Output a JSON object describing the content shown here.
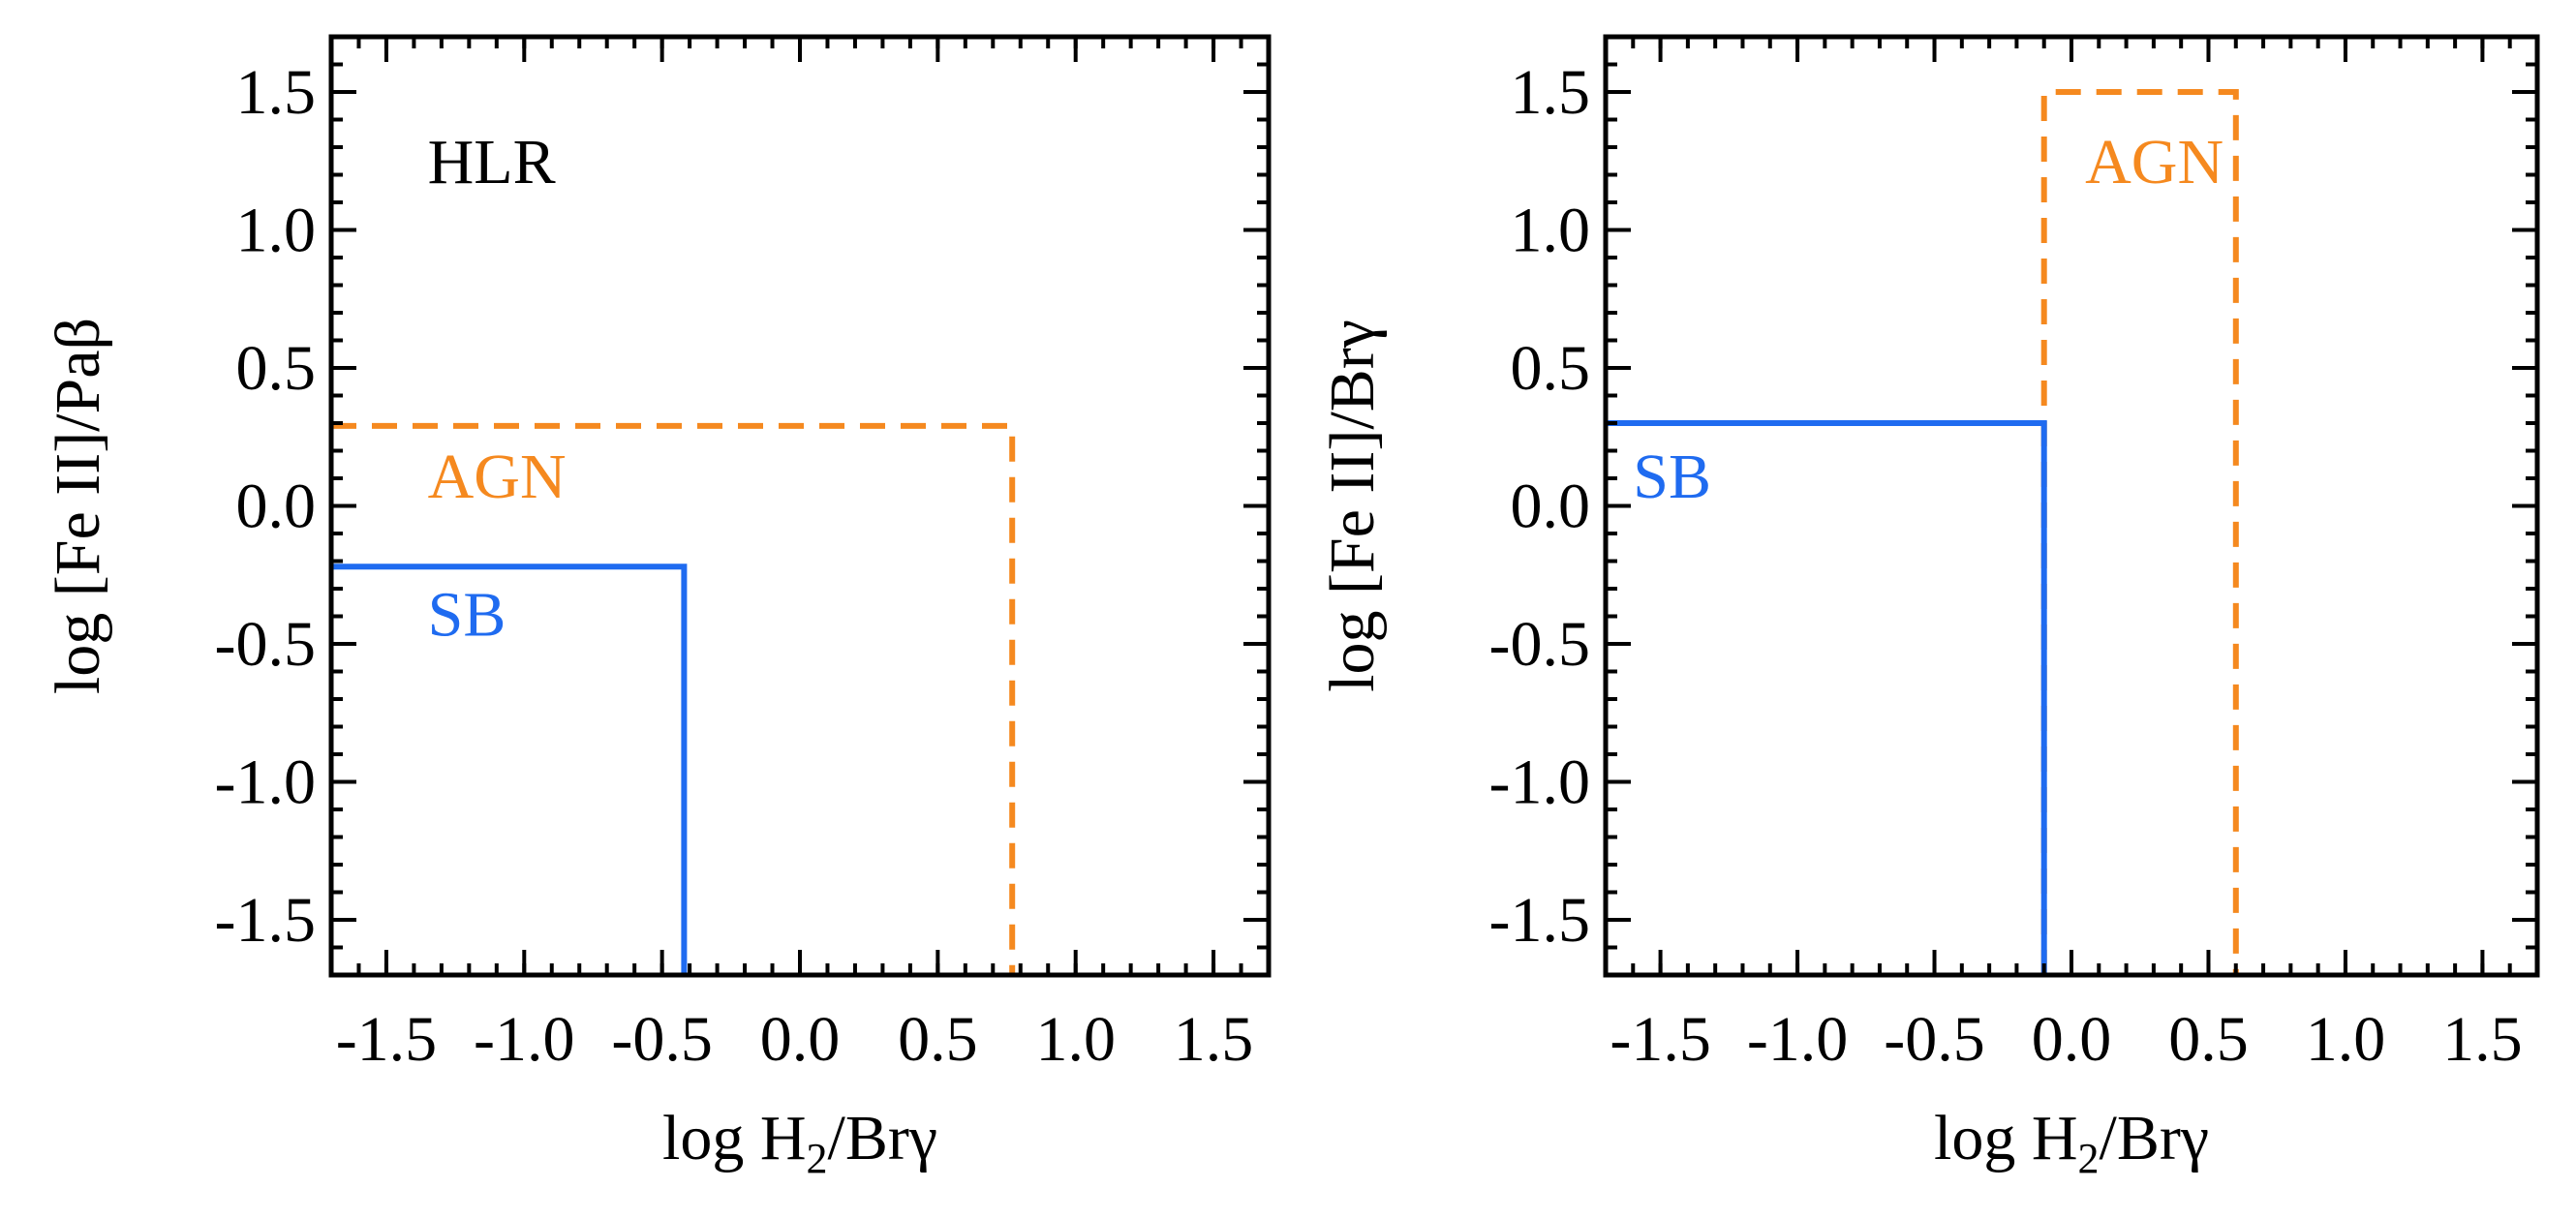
{
  "chart_data": [
    {
      "type": "line",
      "xlabel_main": "log H",
      "xlabel_sub": "2",
      "xlabel_rest": "/Brγ",
      "ylabel": "log [Fe II]/Paβ",
      "xlim": [
        -1.7,
        1.7
      ],
      "ylim": [
        -1.7,
        1.7
      ],
      "xticks": [
        -1.5,
        -1.0,
        -0.5,
        0.0,
        0.5,
        1.0,
        1.5
      ],
      "xtick_labels": [
        "-1.5",
        "-1.0",
        "-0.5",
        "0.0",
        "0.5",
        "1.0",
        "1.5"
      ],
      "yticks": [
        -1.5,
        -1.0,
        -0.5,
        0.0,
        0.5,
        1.0,
        1.5
      ],
      "ytick_labels": [
        "-1.5",
        "-1.0",
        "-0.5",
        "0.0",
        "0.5",
        "1.0",
        "1.5"
      ],
      "annotations": [
        {
          "text": "HLR",
          "x": -1.35,
          "y": 1.17,
          "color": "#000000"
        },
        {
          "text": "AGN",
          "x": -1.35,
          "y": 0.03,
          "color": "#f5891f"
        },
        {
          "text": "SB",
          "x": -1.35,
          "y": -0.47,
          "color": "#1f6bf0"
        }
      ],
      "series": [
        {
          "name": "AGN",
          "color": "#f5891f",
          "style": "dashed",
          "x": [
            -1.7,
            0.77,
            0.77
          ],
          "y": [
            0.29,
            0.29,
            -1.7
          ]
        },
        {
          "name": "SB",
          "color": "#1f6bf0",
          "style": "solid",
          "x": [
            -1.7,
            -0.42,
            -0.42
          ],
          "y": [
            -0.22,
            -0.22,
            -1.7
          ]
        }
      ]
    },
    {
      "type": "line",
      "xlabel_main": "log H",
      "xlabel_sub": "2",
      "xlabel_rest": "/Brγ",
      "ylabel": "log [Fe II]/Brγ",
      "xlim": [
        -1.7,
        1.7
      ],
      "ylim": [
        -1.7,
        1.7
      ],
      "xticks": [
        -1.5,
        -1.0,
        -0.5,
        0.0,
        0.5,
        1.0,
        1.5
      ],
      "xtick_labels": [
        "-1.5",
        "-1.0",
        "-0.5",
        "0.0",
        "0.5",
        "1.0",
        "1.5"
      ],
      "yticks": [
        -1.5,
        -1.0,
        -0.5,
        0.0,
        0.5,
        1.0,
        1.5
      ],
      "ytick_labels": [
        "-1.5",
        "-1.0",
        "-0.5",
        "0.0",
        "0.5",
        "1.0",
        "1.5"
      ],
      "annotations": [
        {
          "text": "AGN",
          "x": 0.05,
          "y": 1.17,
          "color": "#f5891f"
        },
        {
          "text": "SB",
          "x": -1.6,
          "y": 0.03,
          "color": "#1f6bf0"
        }
      ],
      "series": [
        {
          "name": "AGN",
          "color": "#f5891f",
          "style": "dashed",
          "x": [
            -0.1,
            -0.1,
            0.6,
            0.6
          ],
          "y": [
            -1.7,
            1.5,
            1.5,
            -1.7
          ]
        },
        {
          "name": "SB",
          "color": "#1f6bf0",
          "style": "solid",
          "x": [
            -1.7,
            -0.1,
            -0.1
          ],
          "y": [
            0.3,
            0.3,
            -1.7
          ]
        }
      ]
    }
  ]
}
